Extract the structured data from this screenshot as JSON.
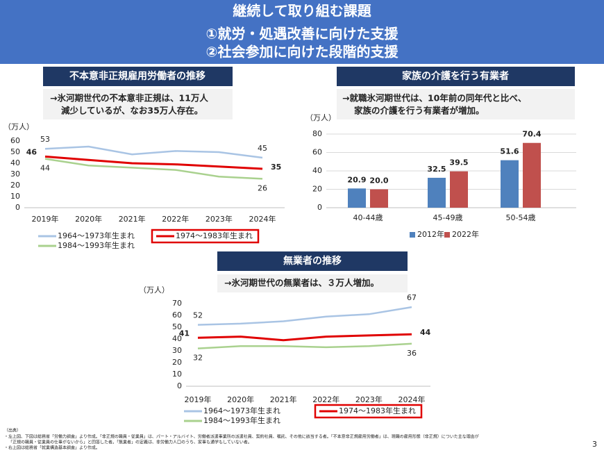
{
  "header": {
    "title": "継続して取り組む課題",
    "lines": [
      "①就労・処遇改善に向けた支援",
      "②社会参加に向けた段階的支援"
    ]
  },
  "chart_data": [
    {
      "type": "line",
      "title": "不本意非正規雇用労働者の推移",
      "annotation": [
        "→氷河期世代の不本意非正規は、11万人",
        "減少しているが、なお35万人存在。"
      ],
      "y_label": "（万人）",
      "categories": [
        "2019年",
        "2020年",
        "2021年",
        "2022年",
        "2023年",
        "2024年"
      ],
      "series": [
        {
          "name": "1964〜1973年生まれ",
          "color": "#a9c4e4",
          "label_color": "#2e75b6",
          "values": [
            53,
            55,
            48,
            51,
            50,
            45
          ]
        },
        {
          "name": "1974〜1983年生まれ",
          "color": "#e00000",
          "label_color": "#e00000",
          "highlight": true,
          "values": [
            46,
            43,
            40,
            39,
            37,
            35
          ]
        },
        {
          "name": "1984〜1993年生まれ",
          "color": "#a9d18e",
          "label_color": "#3fae49",
          "values": [
            44,
            38,
            36,
            34,
            28,
            26
          ]
        }
      ],
      "ylim": [
        0,
        60
      ],
      "yticks": [
        0,
        10,
        20,
        30,
        40,
        50,
        60
      ],
      "grid": false
    },
    {
      "type": "bar",
      "title": "家族の介護を行う有業者",
      "annotation": [
        "→就職氷河期世代は、10年前の同年代と比べ、",
        "家族の介護を行う有業者が増加。"
      ],
      "y_label": "（万人）",
      "categories": [
        "40-44歳",
        "45-49歳",
        "50-54歳"
      ],
      "series": [
        {
          "name": "2012年",
          "color": "#4f81bd",
          "values": [
            20.9,
            32.5,
            51.6
          ]
        },
        {
          "name": "2022年",
          "color": "#c0504d",
          "values": [
            20.0,
            39.5,
            70.4
          ],
          "value_labels": [
            "20.0",
            "39.5",
            "70.4"
          ]
        }
      ],
      "ylim": [
        0,
        80
      ],
      "yticks": [
        0,
        20,
        40,
        60,
        80
      ],
      "grid": true
    },
    {
      "type": "line",
      "title": "無業者の推移",
      "annotation": [
        "→氷河期世代の無業者は、３万人増加。"
      ],
      "y_label": "（万人）",
      "categories": [
        "2019年",
        "2020年",
        "2021年",
        "2022年",
        "2023年",
        "2024年"
      ],
      "series": [
        {
          "name": "1964〜1973年生まれ",
          "color": "#a9c4e4",
          "label_color": "#2e75b6",
          "values": [
            52,
            53,
            55,
            59,
            61,
            67
          ]
        },
        {
          "name": "1974〜1983年生まれ",
          "color": "#e00000",
          "label_color": "#e00000",
          "highlight": true,
          "values": [
            41,
            42,
            39,
            42,
            43,
            44
          ]
        },
        {
          "name": "1984〜1993年生まれ",
          "color": "#a9d18e",
          "label_color": "#3fae49",
          "values": [
            32,
            34,
            34,
            33,
            34,
            36
          ]
        }
      ],
      "ylim": [
        0,
        70
      ],
      "yticks": [
        0,
        10,
        20,
        30,
        40,
        50,
        60,
        70
      ],
      "grid": false
    }
  ],
  "footnote": {
    "heading": "（出典）",
    "lines": [
      "・左上図、下図は総務省「労働力調査」より作成。「非正規の職員・従業員」は、パート・アルバイト、労働者派遣事業所の派遣社員、契約社員、嘱託、その他に該当する者。「不本意非正規雇用労働者」は、現職の雇用形態（非正規）についた主な理由が",
      "「正規の職員・従業員の仕事がないから」と回答した者。「無業者」の定義は、非労働力人口のうち、家事も通学もしていない者。",
      "・右上図は総務省「就業構造基本調査」より作成。"
    ]
  },
  "page_number": "3"
}
